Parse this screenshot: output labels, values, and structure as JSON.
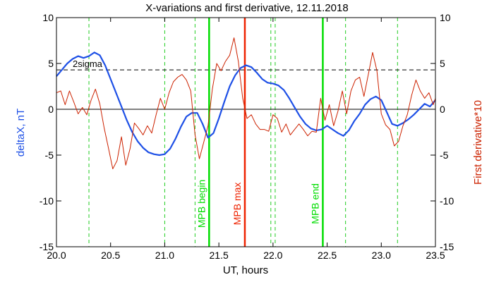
{
  "chart_data": {
    "type": "line",
    "title": "X-variations and first derivative, 12.11.2018",
    "xlabel": "UT, hours",
    "ylabel_left": "deltaX, nT",
    "ylabel_right": "First derivative*10",
    "xlim": [
      20.0,
      23.5
    ],
    "ylim_left": [
      -15,
      10
    ],
    "ylim_right": [
      -15,
      10
    ],
    "x_ticks": [
      "20.0",
      "20.5",
      "21.0",
      "21.5",
      "22.0",
      "22.5",
      "23.0",
      "23.5"
    ],
    "y_ticks": [
      "-15",
      "-10",
      "-5",
      "0",
      "5",
      "10"
    ],
    "threshold": {
      "label": "2sigma",
      "value": 4.3
    },
    "zero_line": 0,
    "grid": false,
    "colors": {
      "deltaX": "#1e50e6",
      "derivative": "#cc2200",
      "mpb_border": "#00dd00",
      "mpb_max": "#ee2200",
      "dashed_markers": "#22cc22",
      "axis": "#000000"
    },
    "dashed_markers_x": [
      20.3,
      21.0,
      21.28,
      21.98,
      22.02,
      22.67,
      23.15
    ],
    "events": [
      {
        "label": "MPB begin",
        "x": 21.41
      },
      {
        "label": "MPB max",
        "x": 21.74
      },
      {
        "label": "MPB end",
        "x": 22.46
      }
    ],
    "series": [
      {
        "name": "deltaX",
        "axis": "left",
        "x": [
          20.0,
          20.05,
          20.1,
          20.15,
          20.2,
          20.25,
          20.3,
          20.35,
          20.4,
          20.45,
          20.5,
          20.55,
          20.6,
          20.65,
          20.7,
          20.75,
          20.8,
          20.85,
          20.9,
          20.95,
          21.0,
          21.05,
          21.1,
          21.15,
          21.2,
          21.25,
          21.3,
          21.35,
          21.4,
          21.45,
          21.5,
          21.55,
          21.6,
          21.65,
          21.7,
          21.75,
          21.8,
          21.85,
          21.9,
          21.95,
          22.0,
          22.05,
          22.1,
          22.15,
          22.2,
          22.25,
          22.3,
          22.35,
          22.4,
          22.45,
          22.5,
          22.55,
          22.6,
          22.65,
          22.7,
          22.75,
          22.8,
          22.85,
          22.9,
          22.95,
          23.0,
          23.05,
          23.1,
          23.15,
          23.2,
          23.25,
          23.3,
          23.35,
          23.4,
          23.45,
          23.5
        ],
        "values": [
          3.6,
          4.3,
          5.0,
          5.5,
          5.8,
          5.6,
          5.8,
          6.2,
          5.9,
          4.8,
          3.3,
          1.8,
          0.3,
          -1.2,
          -2.5,
          -3.5,
          -4.2,
          -4.7,
          -4.9,
          -5.0,
          -4.9,
          -4.3,
          -3.2,
          -1.9,
          -0.8,
          -0.4,
          -0.4,
          -1.6,
          -3.1,
          -2.6,
          -1.0,
          0.8,
          2.5,
          3.7,
          4.5,
          4.8,
          4.6,
          4.0,
          3.3,
          2.9,
          2.8,
          2.6,
          2.1,
          1.2,
          0.2,
          -0.8,
          -1.6,
          -2.1,
          -2.3,
          -2.2,
          -1.8,
          -2.2,
          -2.6,
          -2.9,
          -2.3,
          -1.3,
          -0.5,
          0.5,
          1.1,
          1.4,
          1.0,
          -0.3,
          -1.6,
          -1.8,
          -1.5,
          -1.1,
          -0.6,
          0.0,
          0.6,
          0.3,
          1.0
        ]
      },
      {
        "name": "First derivative*10",
        "axis": "right",
        "x": [
          20.0,
          20.04,
          20.08,
          20.12,
          20.16,
          20.2,
          20.24,
          20.28,
          20.32,
          20.36,
          20.4,
          20.44,
          20.48,
          20.52,
          20.56,
          20.6,
          20.64,
          20.68,
          20.72,
          20.76,
          20.8,
          20.84,
          20.88,
          20.92,
          20.96,
          21.0,
          21.04,
          21.08,
          21.12,
          21.16,
          21.2,
          21.24,
          21.28,
          21.32,
          21.36,
          21.4,
          21.44,
          21.48,
          21.52,
          21.56,
          21.6,
          21.64,
          21.68,
          21.72,
          21.76,
          21.8,
          21.84,
          21.88,
          21.92,
          21.96,
          22.0,
          22.04,
          22.08,
          22.12,
          22.16,
          22.2,
          22.24,
          22.28,
          22.32,
          22.36,
          22.4,
          22.44,
          22.48,
          22.52,
          22.56,
          22.6,
          22.64,
          22.68,
          22.72,
          22.76,
          22.8,
          22.84,
          22.88,
          22.92,
          22.96,
          23.0,
          23.04,
          23.08,
          23.12,
          23.16,
          23.2,
          23.24,
          23.28,
          23.32,
          23.36,
          23.4,
          23.44,
          23.48,
          23.5
        ],
        "values": [
          1.8,
          2.0,
          0.5,
          2.0,
          0.8,
          -0.5,
          0.2,
          -0.6,
          1.0,
          2.2,
          0.6,
          -2.0,
          -4.2,
          -6.5,
          -5.6,
          -3.0,
          -6.1,
          -4.3,
          -1.5,
          -2.1,
          -2.8,
          -1.8,
          -2.6,
          -0.6,
          1.2,
          0.0,
          1.8,
          3.0,
          3.5,
          3.8,
          3.2,
          2.0,
          -2.8,
          -5.4,
          -3.6,
          -1.8,
          2.2,
          5.0,
          4.2,
          5.2,
          5.9,
          7.8,
          5.2,
          1.2,
          -1.0,
          -0.6,
          -1.6,
          -2.2,
          -2.2,
          -2.4,
          -0.6,
          -1.0,
          -2.5,
          -1.6,
          -2.8,
          -2.2,
          -1.6,
          -2.2,
          -2.9,
          -2.4,
          -2.5,
          1.2,
          -1.2,
          0.5,
          -1.8,
          -0.2,
          2.0,
          -0.5,
          2.0,
          3.2,
          3.5,
          1.4,
          3.8,
          6.2,
          4.2,
          -0.5,
          -1.7,
          -2.2,
          -4.0,
          -3.5,
          -1.8,
          -0.6,
          1.5,
          3.2,
          2.0,
          1.2,
          1.8,
          0.5,
          1.2
        ]
      }
    ]
  }
}
